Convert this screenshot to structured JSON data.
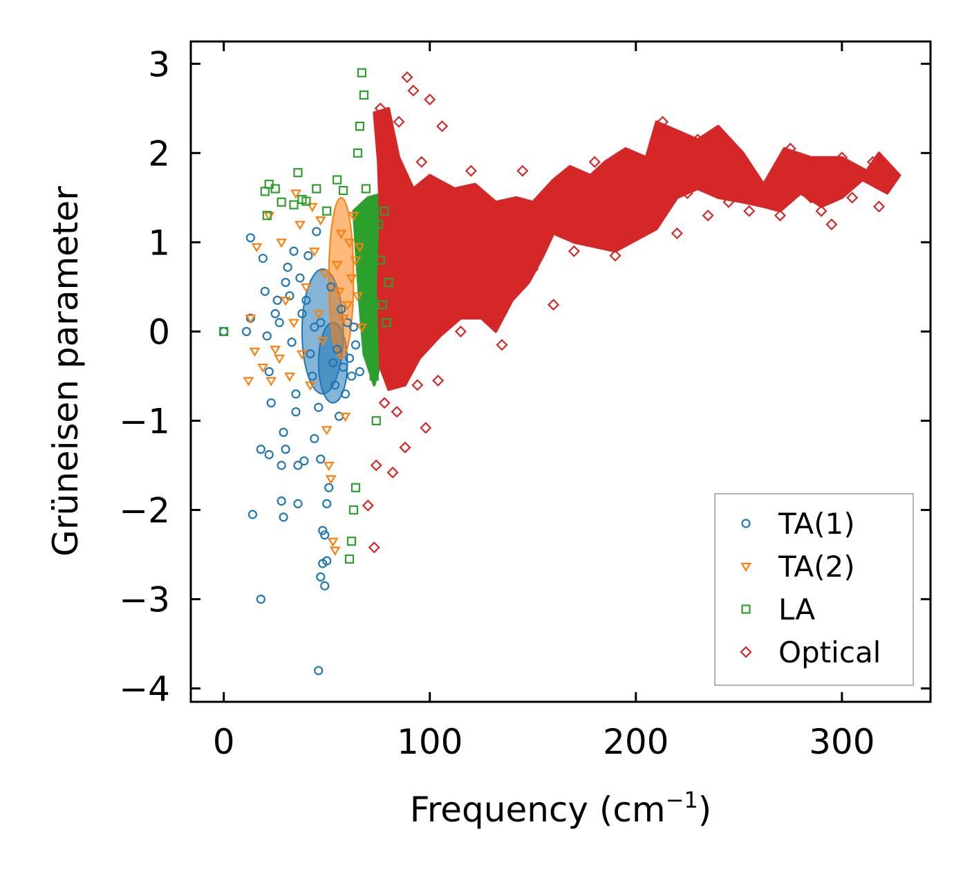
{
  "chart_data": {
    "type": "scatter",
    "title": "",
    "xlabel": "Frequency (cm",
    "xlabel_sup": "−1",
    "xlabel_end": ")",
    "ylabel": "Grüneisen parameter",
    "xlim": [
      -16,
      343
    ],
    "ylim": [
      -4.15,
      3.25
    ],
    "xticks": [
      0,
      100,
      200,
      300
    ],
    "xtick_labels": [
      "0",
      "100",
      "200",
      "300"
    ],
    "yticks": [
      3,
      2,
      1,
      0,
      -1,
      -2,
      -3,
      -4
    ],
    "ytick_labels": [
      "3",
      "2",
      "1",
      "0",
      "−1",
      "−2",
      "−3",
      "−4"
    ],
    "grid": false,
    "legend_position": "lower-right",
    "series": [
      {
        "name": "TA(1)",
        "marker": "circle",
        "color": "#1f77b4",
        "points": [
          [
            0,
            0
          ],
          [
            11,
            0
          ],
          [
            13,
            1.05
          ],
          [
            13,
            0.15
          ],
          [
            14,
            -2.05
          ],
          [
            18,
            -3
          ],
          [
            18,
            -1.32
          ],
          [
            19,
            0.82
          ],
          [
            20,
            0.45
          ],
          [
            21,
            -0.05
          ],
          [
            22,
            -0.45
          ],
          [
            22,
            -1.38
          ],
          [
            23,
            -0.8
          ],
          [
            25,
            0.2
          ],
          [
            26,
            0.35
          ],
          [
            27,
            0.1
          ],
          [
            28,
            -1.5
          ],
          [
            28,
            -1.9
          ],
          [
            29,
            -2.08
          ],
          [
            29,
            -1.13
          ],
          [
            30,
            -1.32
          ],
          [
            30,
            0.55
          ],
          [
            31,
            0.72
          ],
          [
            32,
            0.4
          ],
          [
            33,
            -0.12
          ],
          [
            34,
            0.9
          ],
          [
            35,
            -0.7
          ],
          [
            35,
            -0.9
          ],
          [
            36,
            -1.93
          ],
          [
            36,
            -1.5
          ],
          [
            37,
            0.6
          ],
          [
            38,
            0.2
          ],
          [
            39,
            -1.45
          ],
          [
            40,
            0.35
          ],
          [
            41,
            0.85
          ],
          [
            42,
            -0.25
          ],
          [
            43,
            -0.5
          ],
          [
            44,
            0.05
          ],
          [
            44,
            -1.2
          ],
          [
            45,
            1.12
          ],
          [
            46,
            -3.8
          ],
          [
            46,
            -0.85
          ],
          [
            47,
            0.1
          ],
          [
            47,
            -1.43
          ],
          [
            47,
            -2.75
          ],
          [
            48,
            -2.6
          ],
          [
            48,
            -2.23
          ],
          [
            49,
            -2.85
          ],
          [
            49,
            -2.28
          ],
          [
            50,
            -1.93
          ],
          [
            50,
            -2.57
          ],
          [
            51,
            -1.75
          ],
          [
            52,
            0.5
          ],
          [
            53,
            -0.35
          ],
          [
            54,
            -0.6
          ],
          [
            55,
            -0.2
          ],
          [
            56,
            -0.95
          ],
          [
            57,
            0.25
          ],
          [
            58,
            -0.4
          ],
          [
            59,
            -0.7
          ],
          [
            60,
            0.1
          ],
          [
            61,
            -0.3
          ],
          [
            62,
            -0.5
          ],
          [
            63,
            0.05
          ],
          [
            64,
            -0.15
          ],
          [
            66,
            -0.45
          ]
        ]
      },
      {
        "name": "TA(2)",
        "marker": "triangle",
        "color": "#ff7f0e",
        "points": [
          [
            12,
            -0.55
          ],
          [
            13,
            0.15
          ],
          [
            15,
            -0.22
          ],
          [
            16,
            0.95
          ],
          [
            19,
            -0.4
          ],
          [
            22,
            1.3
          ],
          [
            23,
            -0.55
          ],
          [
            25,
            -0.2
          ],
          [
            27,
            -0.3
          ],
          [
            28,
            1.0
          ],
          [
            30,
            0.35
          ],
          [
            32,
            -0.5
          ],
          [
            34,
            0.1
          ],
          [
            35,
            1.55
          ],
          [
            37,
            1.2
          ],
          [
            38,
            -0.25
          ],
          [
            40,
            0.5
          ],
          [
            42,
            -0.6
          ],
          [
            43,
            1.4
          ],
          [
            44,
            0.9
          ],
          [
            46,
            0.2
          ],
          [
            47,
            1.25
          ],
          [
            48,
            -0.1
          ],
          [
            49,
            0.65
          ],
          [
            50,
            -1.1
          ],
          [
            51,
            -1.5
          ],
          [
            52,
            -1.65
          ],
          [
            53,
            -2.35
          ],
          [
            54,
            -2.45
          ],
          [
            55,
            0.75
          ],
          [
            56,
            0.45
          ],
          [
            57,
            1.1
          ],
          [
            58,
            0.15
          ],
          [
            59,
            -0.95
          ],
          [
            60,
            0.3
          ],
          [
            61,
            1.0
          ],
          [
            62,
            0.6
          ],
          [
            63,
            1.3
          ],
          [
            64,
            0.8
          ],
          [
            65,
            0.4
          ],
          [
            66,
            0.95
          ],
          [
            67,
            0.05
          ]
        ]
      },
      {
        "name": "LA",
        "marker": "square",
        "color": "#2ca02c",
        "points": [
          [
            0,
            0
          ],
          [
            20,
            1.57
          ],
          [
            21,
            1.3
          ],
          [
            22,
            1.65
          ],
          [
            25,
            1.6
          ],
          [
            28,
            1.45
          ],
          [
            34,
            1.42
          ],
          [
            36,
            1.78
          ],
          [
            38,
            1.48
          ],
          [
            40,
            1.46
          ],
          [
            45,
            1.6
          ],
          [
            50,
            1.35
          ],
          [
            55,
            1.7
          ],
          [
            58,
            1.58
          ],
          [
            61,
            -2.55
          ],
          [
            62,
            -2.35
          ],
          [
            63,
            -2.0
          ],
          [
            64,
            -1.75
          ],
          [
            65,
            2.0
          ],
          [
            66,
            2.3
          ],
          [
            67,
            2.9
          ],
          [
            68,
            2.65
          ],
          [
            69,
            1.6
          ],
          [
            70,
            1.0
          ],
          [
            71,
            0.5
          ],
          [
            72,
            0.0
          ],
          [
            73,
            -0.5
          ],
          [
            74,
            -1.0
          ],
          [
            75,
            1.2
          ],
          [
            76,
            0.8
          ],
          [
            77,
            0.3
          ],
          [
            78,
            1.35
          ],
          [
            79,
            0.1
          ],
          [
            80,
            0.55
          ]
        ]
      },
      {
        "name": "Optical",
        "marker": "diamond",
        "color": "#d62728",
        "points": [
          [
            70,
            -1.95
          ],
          [
            73,
            -2.42
          ],
          [
            74,
            -1.5
          ],
          [
            76,
            2.5
          ],
          [
            78,
            -0.8
          ],
          [
            80,
            2.2
          ],
          [
            82,
            -1.58
          ],
          [
            84,
            -0.9
          ],
          [
            85,
            2.35
          ],
          [
            88,
            -1.3
          ],
          [
            89,
            2.85
          ],
          [
            90,
            1.6
          ],
          [
            92,
            2.7
          ],
          [
            94,
            -0.6
          ],
          [
            96,
            1.9
          ],
          [
            98,
            -1.08
          ],
          [
            100,
            2.6
          ],
          [
            102,
            0.1
          ],
          [
            104,
            -0.55
          ],
          [
            106,
            2.3
          ],
          [
            110,
            1.5
          ],
          [
            115,
            0.0
          ],
          [
            120,
            1.8
          ],
          [
            125,
            0.6
          ],
          [
            130,
            1.2
          ],
          [
            135,
            -0.15
          ],
          [
            140,
            0.9
          ],
          [
            145,
            1.8
          ],
          [
            150,
            0.7
          ],
          [
            155,
            1.4
          ],
          [
            160,
            0.3
          ],
          [
            165,
            1.6
          ],
          [
            170,
            0.9
          ],
          [
            175,
            1.2
          ],
          [
            180,
            1.9
          ],
          [
            185,
            1.5
          ],
          [
            190,
            0.85
          ],
          [
            195,
            1.7
          ],
          [
            200,
            1.3
          ],
          [
            205,
            1.75
          ],
          [
            210,
            2.05
          ],
          [
            213,
            2.35
          ],
          [
            220,
            1.1
          ],
          [
            225,
            1.55
          ],
          [
            230,
            2.15
          ],
          [
            235,
            1.3
          ],
          [
            240,
            1.95
          ],
          [
            245,
            1.45
          ],
          [
            250,
            1.65
          ],
          [
            255,
            1.35
          ],
          [
            262,
            1.6
          ],
          [
            270,
            1.3
          ],
          [
            275,
            2.05
          ],
          [
            280,
            1.75
          ],
          [
            285,
            1.5
          ],
          [
            290,
            1.35
          ],
          [
            295,
            1.2
          ],
          [
            300,
            1.95
          ],
          [
            305,
            1.5
          ],
          [
            310,
            1.75
          ],
          [
            315,
            1.9
          ],
          [
            318,
            1.4
          ],
          [
            322,
            1.65
          ],
          [
            326,
            1.75
          ]
        ]
      }
    ],
    "dense_regions": [
      {
        "series": "TA(1)",
        "ellipses": [
          [
            53,
            -0.35,
            7,
            0.45
          ],
          [
            48,
            0.0,
            10,
            0.7
          ]
        ]
      },
      {
        "series": "TA(2)",
        "ellipses": [
          [
            57,
            0.6,
            6,
            0.9
          ]
        ]
      },
      {
        "series": "LA",
        "polygon": [
          [
            63,
            1.35
          ],
          [
            70,
            1.5
          ],
          [
            78,
            1.55
          ],
          [
            80,
            1.2
          ],
          [
            79,
            0.5
          ],
          [
            78,
            -0.2
          ],
          [
            73,
            -0.6
          ],
          [
            68,
            -0.25
          ],
          [
            66,
            0.3
          ],
          [
            64,
            1.0
          ]
        ]
      },
      {
        "series": "Optical",
        "polygon": [
          [
            73,
            2.45
          ],
          [
            80,
            2.5
          ],
          [
            85,
            1.95
          ],
          [
            92,
            1.6
          ],
          [
            100,
            1.75
          ],
          [
            112,
            1.6
          ],
          [
            122,
            1.65
          ],
          [
            132,
            1.45
          ],
          [
            142,
            1.5
          ],
          [
            150,
            1.45
          ],
          [
            160,
            1.7
          ],
          [
            168,
            1.85
          ],
          [
            178,
            1.75
          ],
          [
            185,
            1.9
          ],
          [
            195,
            2.05
          ],
          [
            205,
            1.95
          ],
          [
            210,
            2.35
          ],
          [
            220,
            2.25
          ],
          [
            230,
            2.15
          ],
          [
            240,
            2.3
          ],
          [
            252,
            2.0
          ],
          [
            262,
            1.65
          ],
          [
            272,
            2.05
          ],
          [
            285,
            1.95
          ],
          [
            300,
            1.95
          ],
          [
            312,
            1.8
          ],
          [
            318,
            2.0
          ],
          [
            328,
            1.75
          ],
          [
            322,
            1.55
          ],
          [
            310,
            1.7
          ],
          [
            300,
            1.5
          ],
          [
            290,
            1.4
          ],
          [
            280,
            1.55
          ],
          [
            270,
            1.35
          ],
          [
            262,
            1.4
          ],
          [
            252,
            1.45
          ],
          [
            240,
            1.5
          ],
          [
            230,
            1.6
          ],
          [
            220,
            1.5
          ],
          [
            210,
            1.15
          ],
          [
            198,
            1.0
          ],
          [
            190,
            0.9
          ],
          [
            180,
            0.95
          ],
          [
            170,
            1.0
          ],
          [
            160,
            1.1
          ],
          [
            155,
            0.85
          ],
          [
            148,
            0.55
          ],
          [
            140,
            0.35
          ],
          [
            132,
            0.0
          ],
          [
            125,
            0.15
          ],
          [
            115,
            0.15
          ],
          [
            105,
            -0.05
          ],
          [
            95,
            -0.3
          ],
          [
            88,
            -0.6
          ],
          [
            80,
            -0.65
          ],
          [
            76,
            -0.4
          ],
          [
            75,
            0.5
          ],
          [
            76,
            1.2
          ],
          [
            75,
            1.9
          ]
        ]
      }
    ],
    "legend": [
      "TA(1)",
      "TA(2)",
      "LA",
      "Optical"
    ]
  }
}
